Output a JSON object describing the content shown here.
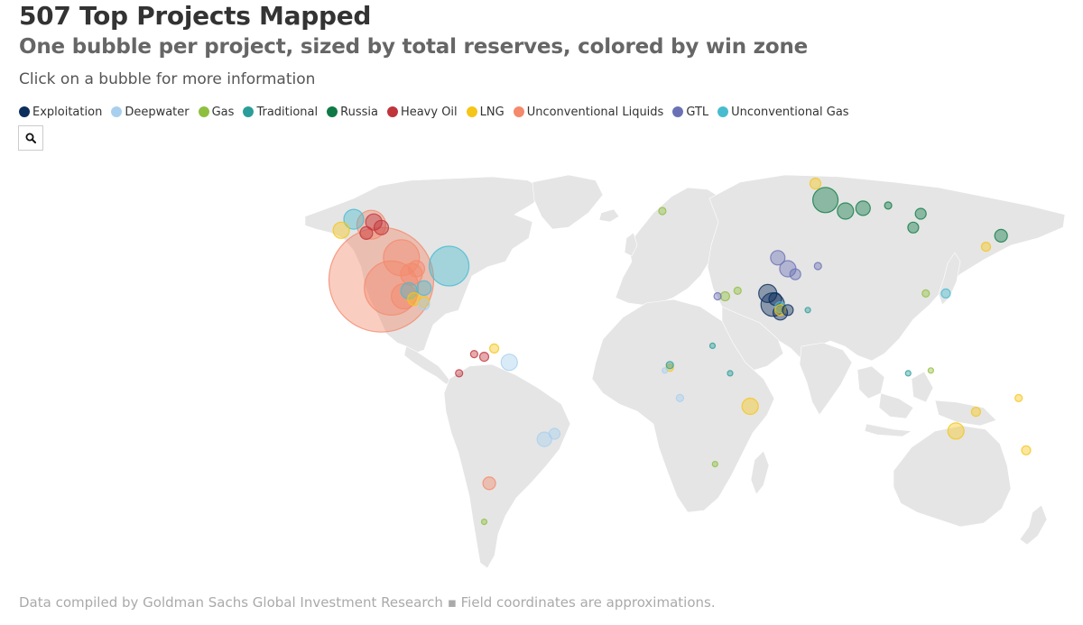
{
  "header": {
    "title": "507 Top Projects Mapped",
    "subtitle": "One bubble per project, sized by total reserves, colored by win zone",
    "instruction": "Click on a bubble for more information"
  },
  "legend": [
    {
      "label": "Exploitation",
      "color": "#0b2e5c"
    },
    {
      "label": "Deepwater",
      "color": "#a8d0ee"
    },
    {
      "label": "Gas",
      "color": "#8fbf3f"
    },
    {
      "label": "Traditional",
      "color": "#2a9d9a"
    },
    {
      "label": "Russia",
      "color": "#0e7a45"
    },
    {
      "label": "Heavy Oil",
      "color": "#c0343c"
    },
    {
      "label": "LNG",
      "color": "#f5c518"
    },
    {
      "label": "Unconventional Liquids",
      "color": "#f4896b"
    },
    {
      "label": "GTL",
      "color": "#6a72b5"
    },
    {
      "label": "Unconventional Gas",
      "color": "#48bccf"
    }
  ],
  "search": {
    "icon": "search-icon"
  },
  "map": {
    "projects": [
      {
        "zone": "Unconventional Liquids",
        "lon": -107,
        "lat": 36,
        "size": 58
      },
      {
        "zone": "Unconventional Liquids",
        "lon": -103,
        "lat": 33,
        "size": 30
      },
      {
        "zone": "Unconventional Liquids",
        "lon": -99,
        "lat": 44,
        "size": 20
      },
      {
        "zone": "Unconventional Liquids",
        "lon": -111,
        "lat": 56,
        "size": 16
      },
      {
        "zone": "Unconventional Liquids",
        "lon": -98,
        "lat": 30,
        "size": 14
      },
      {
        "zone": "Unconventional Liquids",
        "lon": -95,
        "lat": 38,
        "size": 12
      },
      {
        "zone": "Unconventional Liquids",
        "lon": -64,
        "lat": -38,
        "size": 7
      },
      {
        "zone": "Unconventional Liquids",
        "lon": -93,
        "lat": 40,
        "size": 9
      },
      {
        "zone": "Unconventional Gas",
        "lon": -80,
        "lat": 41,
        "size": 22
      },
      {
        "zone": "Unconventional Gas",
        "lon": -118,
        "lat": 58,
        "size": 11
      },
      {
        "zone": "Unconventional Gas",
        "lon": -96,
        "lat": 32,
        "size": 9
      },
      {
        "zone": "Unconventional Gas",
        "lon": -90,
        "lat": 33,
        "size": 8
      },
      {
        "zone": "Unconventional Gas",
        "lon": 52,
        "lat": 26,
        "size": 6
      },
      {
        "zone": "Unconventional Gas",
        "lon": 118,
        "lat": 31,
        "size": 5
      },
      {
        "zone": "Heavy Oil",
        "lon": -110,
        "lat": 57,
        "size": 9
      },
      {
        "zone": "Heavy Oil",
        "lon": -107,
        "lat": 55,
        "size": 8
      },
      {
        "zone": "Heavy Oil",
        "lon": -113,
        "lat": 53,
        "size": 7
      },
      {
        "zone": "Heavy Oil",
        "lon": -66,
        "lat": 8,
        "size": 5
      },
      {
        "zone": "Heavy Oil",
        "lon": -70,
        "lat": 9,
        "size": 4
      },
      {
        "zone": "Heavy Oil",
        "lon": -76,
        "lat": 2,
        "size": 4
      },
      {
        "zone": "LNG",
        "lon": -123,
        "lat": 54,
        "size": 9
      },
      {
        "zone": "LNG",
        "lon": -94,
        "lat": 29,
        "size": 7
      },
      {
        "zone": "LNG",
        "lon": -90,
        "lat": 28,
        "size": 6
      },
      {
        "zone": "LNG",
        "lon": 40,
        "lat": -10,
        "size": 9
      },
      {
        "zone": "LNG",
        "lon": 122,
        "lat": -19,
        "size": 9
      },
      {
        "zone": "LNG",
        "lon": 130,
        "lat": -12,
        "size": 5
      },
      {
        "zone": "LNG",
        "lon": 150,
        "lat": -26,
        "size": 5
      },
      {
        "zone": "LNG",
        "lon": 147,
        "lat": -7,
        "size": 4
      },
      {
        "zone": "LNG",
        "lon": 66,
        "lat": 71,
        "size": 6
      },
      {
        "zone": "LNG",
        "lon": 52,
        "lat": 25,
        "size": 6
      },
      {
        "zone": "LNG",
        "lon": 8,
        "lat": 4,
        "size": 4
      },
      {
        "zone": "LNG",
        "lon": -62,
        "lat": 11,
        "size": 5
      },
      {
        "zone": "LNG",
        "lon": 134,
        "lat": 48,
        "size": 5
      },
      {
        "zone": "Russia",
        "lon": 70,
        "lat": 65,
        "size": 14
      },
      {
        "zone": "Russia",
        "lon": 78,
        "lat": 61,
        "size": 9
      },
      {
        "zone": "Russia",
        "lon": 85,
        "lat": 62,
        "size": 8
      },
      {
        "zone": "Russia",
        "lon": 105,
        "lat": 55,
        "size": 6
      },
      {
        "zone": "Russia",
        "lon": 108,
        "lat": 60,
        "size": 6
      },
      {
        "zone": "Russia",
        "lon": 140,
        "lat": 52,
        "size": 7
      },
      {
        "zone": "Russia",
        "lon": 95,
        "lat": 63,
        "size": 4
      },
      {
        "zone": "Exploitation",
        "lon": 47,
        "lat": 31,
        "size": 10
      },
      {
        "zone": "Exploitation",
        "lon": 49,
        "lat": 27,
        "size": 13
      },
      {
        "zone": "Exploitation",
        "lon": 52,
        "lat": 24,
        "size": 8
      },
      {
        "zone": "Exploitation",
        "lon": 55,
        "lat": 25,
        "size": 6
      },
      {
        "zone": "Exploitation",
        "lon": 50,
        "lat": 29,
        "size": 7
      },
      {
        "zone": "GTL",
        "lon": 51,
        "lat": 44,
        "size": 8
      },
      {
        "zone": "GTL",
        "lon": 55,
        "lat": 40,
        "size": 9
      },
      {
        "zone": "GTL",
        "lon": 58,
        "lat": 38,
        "size": 6
      },
      {
        "zone": "GTL",
        "lon": 67,
        "lat": 41,
        "size": 4
      },
      {
        "zone": "GTL",
        "lon": 27,
        "lat": 30,
        "size": 4
      },
      {
        "zone": "Deepwater",
        "lon": -42,
        "lat": -22,
        "size": 8
      },
      {
        "zone": "Deepwater",
        "lon": -38,
        "lat": -20,
        "size": 6
      },
      {
        "zone": "Deepwater",
        "lon": -56,
        "lat": 6,
        "size": 9
      },
      {
        "zone": "Deepwater",
        "lon": -90,
        "lat": 27,
        "size": 6
      },
      {
        "zone": "Deepwater",
        "lon": 12,
        "lat": -7,
        "size": 4
      },
      {
        "zone": "Deepwater",
        "lon": 6,
        "lat": 3,
        "size": 3
      },
      {
        "zone": "Gas",
        "lon": 5,
        "lat": 61,
        "size": 4
      },
      {
        "zone": "Gas",
        "lon": 30,
        "lat": 30,
        "size": 5
      },
      {
        "zone": "Gas",
        "lon": 35,
        "lat": 32,
        "size": 4
      },
      {
        "zone": "Gas",
        "lon": 110,
        "lat": 31,
        "size": 4
      },
      {
        "zone": "Gas",
        "lon": -66,
        "lat": -52,
        "size": 3
      },
      {
        "zone": "Gas",
        "lon": 112,
        "lat": 3,
        "size": 3
      },
      {
        "zone": "Gas",
        "lon": 26,
        "lat": -31,
        "size": 3
      },
      {
        "zone": "Traditional",
        "lon": 8,
        "lat": 5,
        "size": 4
      },
      {
        "zone": "Traditional",
        "lon": 25,
        "lat": 12,
        "size": 3
      },
      {
        "zone": "Traditional",
        "lon": 63,
        "lat": 25,
        "size": 3
      },
      {
        "zone": "Traditional",
        "lon": 103,
        "lat": 2,
        "size": 3
      },
      {
        "zone": "Traditional",
        "lon": 32,
        "lat": 2,
        "size": 3
      }
    ]
  },
  "footer": {
    "text": "Data compiled by Goldman Sachs Global Investment Research ▪ Field coordinates are approximations."
  }
}
